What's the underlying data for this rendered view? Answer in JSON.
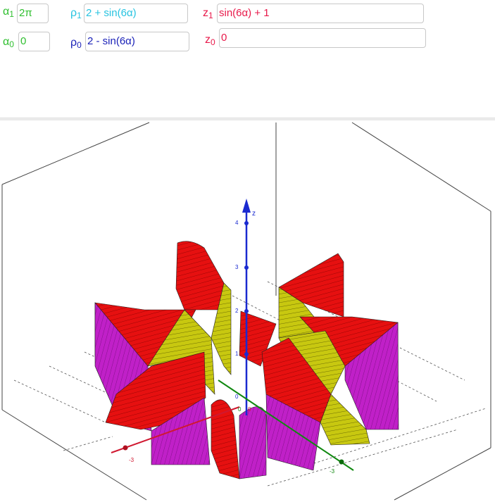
{
  "inputs": {
    "alpha1": {
      "sym": "α",
      "sub": "1",
      "value": "2π",
      "color": "#2fbf2f"
    },
    "alpha0": {
      "sym": "α",
      "sub": "0",
      "value": "0",
      "color": "#2fbf2f"
    },
    "rho1": {
      "sym": "ρ",
      "sub": "1",
      "value": "2 + sin(6α)",
      "color": "#27c3e0"
    },
    "rho0": {
      "sym": "ρ",
      "sub": "0",
      "value": "2 - sin(6α)",
      "color": "#1b22b8"
    },
    "z1": {
      "sym": "z",
      "sub": "1",
      "value": "sin(6α) + 1",
      "color": "#e8194a"
    },
    "z0": {
      "sym": "z",
      "sub": "0",
      "value": "0",
      "color": "#e8194a"
    }
  },
  "graphics3d": {
    "z_axis_label": "z",
    "z_ticks": [
      "4",
      "3",
      "2",
      "1"
    ],
    "x_tick": "-3",
    "y_tick": "-3",
    "origin_labels": [
      "0",
      "0",
      "0"
    ],
    "colors": {
      "surface_red": "#e61010",
      "surface_magenta": "#c020c8",
      "surface_yellow": "#c8c810",
      "axis_z": "#1a2ad0",
      "axis_x": "#d01830",
      "axis_y": "#108810"
    }
  }
}
